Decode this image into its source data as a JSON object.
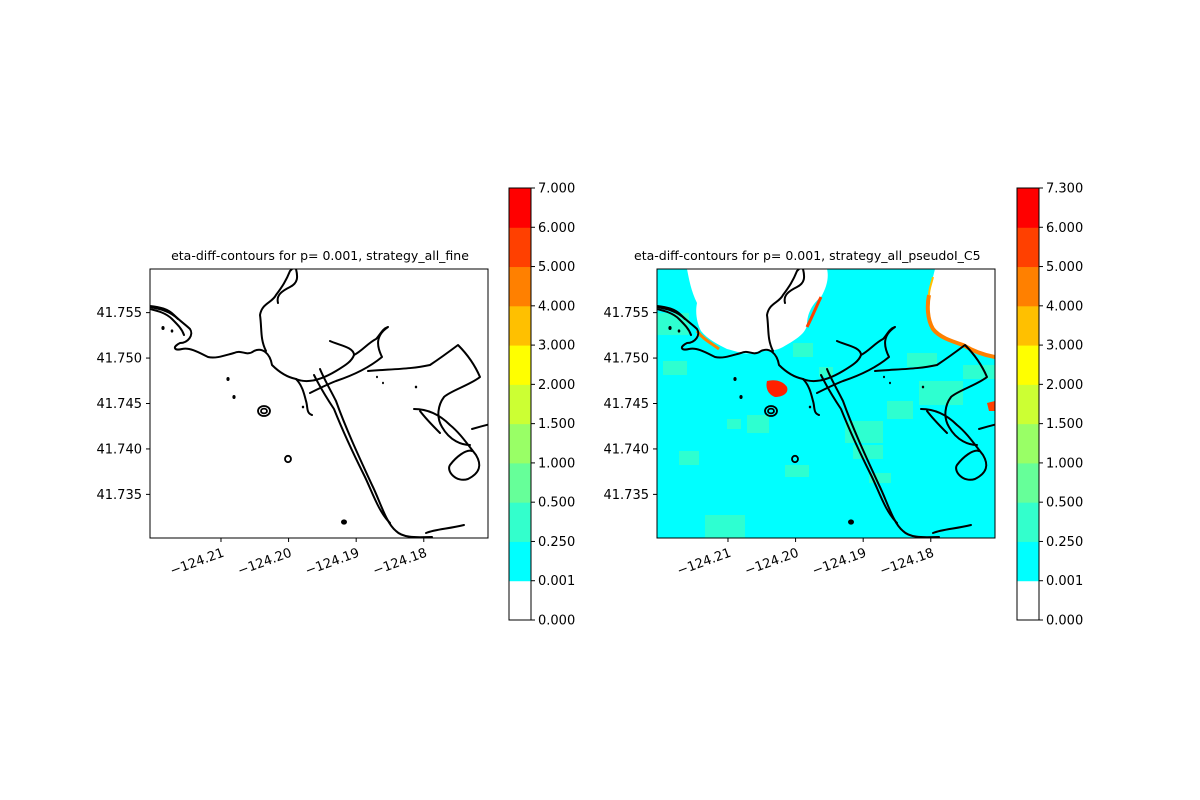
{
  "chart_data": [
    {
      "type": "heatmap",
      "title": "eta-diff-contours for p= 0.001, strategy_all_fine",
      "xlabel": "",
      "ylabel": "",
      "x_ticks": [
        "−124.21",
        "−124.20",
        "−124.19",
        "−124.18"
      ],
      "x_tick_values": [
        -124.21,
        -124.2,
        -124.19,
        -124.18
      ],
      "y_ticks": [
        "41.735",
        "41.740",
        "41.745",
        "41.750",
        "41.755"
      ],
      "y_tick_values": [
        41.735,
        41.74,
        41.745,
        41.75,
        41.755
      ],
      "xlim": [
        -124.2205,
        -124.1705
      ],
      "ylim": [
        41.7302,
        41.7598
      ],
      "grid": false,
      "colorbar": {
        "levels": [
          "0.000",
          "0.001",
          "0.250",
          "0.500",
          "1.000",
          "1.500",
          "2.000",
          "3.000",
          "4.000",
          "5.000",
          "6.000",
          "7.000"
        ],
        "colors": [
          "#ffffff",
          "#00ffff",
          "#33ffcc",
          "#66ff99",
          "#99ff66",
          "#ccff33",
          "#ffff00",
          "#ffc000",
          "#ff8000",
          "#ff4000",
          "#ff0000"
        ]
      },
      "field_summary": "all cells 0.000–0.001 (white)"
    },
    {
      "type": "heatmap",
      "title": "eta-diff-contours for p= 0.001, strategy_all_pseudoI_C5",
      "xlabel": "",
      "ylabel": "",
      "x_ticks": [
        "−124.21",
        "−124.20",
        "−124.19",
        "−124.18"
      ],
      "x_tick_values": [
        -124.21,
        -124.2,
        -124.19,
        -124.18
      ],
      "y_ticks": [
        "41.735",
        "41.740",
        "41.745",
        "41.750",
        "41.755"
      ],
      "y_tick_values": [
        41.735,
        41.74,
        41.745,
        41.75,
        41.755
      ],
      "xlim": [
        -124.2205,
        -124.1705
      ],
      "ylim": [
        41.7302,
        41.7598
      ],
      "grid": false,
      "colorbar": {
        "levels": [
          "0.000",
          "0.001",
          "0.250",
          "0.500",
          "1.000",
          "1.500",
          "2.000",
          "3.000",
          "4.000",
          "5.000",
          "6.000",
          "7.300"
        ],
        "colors": [
          "#ffffff",
          "#00ffff",
          "#33ffcc",
          "#66ff99",
          "#99ff66",
          "#ccff33",
          "#ffff00",
          "#ffc000",
          "#ff8000",
          "#ff4000",
          "#ff0000"
        ]
      },
      "field_summary": "water mostly 0.001–0.250 (cyan), scattered 0.250–0.500 patches, land white, narrow 4.000–7.300 fringes along shorelines"
    }
  ]
}
